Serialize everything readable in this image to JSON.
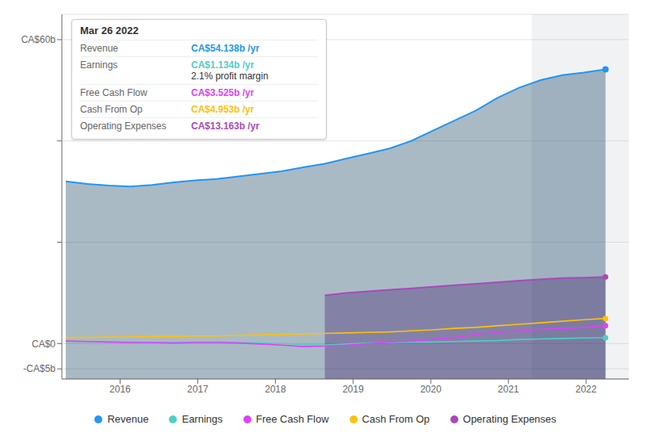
{
  "chart_data": {
    "type": "line",
    "xlim": [
      2015.25,
      2022.55
    ],
    "xticks": [
      2016,
      2017,
      2018,
      2019,
      2020,
      2021,
      2022
    ],
    "ylim": [
      -7,
      65
    ],
    "yticks": [
      {
        "value": 60,
        "label": "CA$60b"
      },
      {
        "value": 40,
        "label": null
      },
      {
        "value": 20,
        "label": null
      },
      {
        "value": 0,
        "label": "CA$0"
      },
      {
        "value": -5,
        "label": "-CA$5b"
      }
    ],
    "grid": true,
    "legend": "bottom",
    "x": [
      2015.3,
      2015.578,
      2015.856,
      2016.134,
      2016.412,
      2016.69,
      2016.968,
      2017.246,
      2017.524,
      2017.802,
      2018.08,
      2018.358,
      2018.636,
      2018.914,
      2019.192,
      2019.47,
      2019.748,
      2020.026,
      2020.304,
      2020.582,
      2020.86,
      2021.138,
      2021.416,
      2021.694,
      2021.972,
      2022.25
    ],
    "highlight_x": [
      2021.3,
      2023.25
    ],
    "series": [
      {
        "name": "Revenue",
        "type": "area",
        "color": "#2196f3",
        "fill_color": "#0a3a5a",
        "values": [
          32.0,
          31.5,
          31.2,
          31.0,
          31.3,
          31.8,
          32.2,
          32.5,
          33.0,
          33.5,
          34.0,
          34.8,
          35.5,
          36.5,
          37.5,
          38.5,
          40.0,
          42.0,
          44.0,
          46.0,
          48.5,
          50.5,
          52.0,
          53.0,
          53.5,
          54.138
        ]
      },
      {
        "name": "Earnings",
        "type": "line",
        "color": "#4dd0c4",
        "values": [
          0.5,
          0.4,
          0.3,
          0.3,
          0.2,
          0.2,
          0.3,
          0.3,
          0.2,
          0.1,
          0.0,
          -0.2,
          -0.3,
          -0.1,
          0.1,
          0.2,
          0.3,
          0.3,
          0.4,
          0.5,
          0.6,
          0.8,
          0.9,
          1.0,
          1.1,
          1.134
        ]
      },
      {
        "name": "Free Cash Flow",
        "type": "line",
        "color": "#e040fb",
        "values": [
          0.5,
          0.4,
          0.3,
          0.2,
          0.2,
          0.1,
          0.2,
          0.2,
          0.1,
          -0.1,
          -0.3,
          -0.6,
          -0.5,
          -0.3,
          0.0,
          0.3,
          0.5,
          0.8,
          1.2,
          1.8,
          2.2,
          2.5,
          2.8,
          3.0,
          3.2,
          3.525
        ]
      },
      {
        "name": "Cash From Op",
        "type": "line",
        "color": "#ffc107",
        "values": [
          1.2,
          1.2,
          1.3,
          1.3,
          1.4,
          1.4,
          1.5,
          1.5,
          1.6,
          1.7,
          1.8,
          1.9,
          2.0,
          2.1,
          2.2,
          2.3,
          2.5,
          2.7,
          3.0,
          3.2,
          3.5,
          3.8,
          4.1,
          4.4,
          4.7,
          4.953
        ]
      },
      {
        "name": "Operating Expenses",
        "type": "area",
        "color": "#ab47bc",
        "fill_color": "#3d1a6e",
        "values": [
          null,
          null,
          null,
          null,
          null,
          null,
          null,
          null,
          null,
          null,
          null,
          null,
          9.5,
          10.0,
          10.3,
          10.6,
          10.9,
          11.2,
          11.5,
          11.8,
          12.1,
          12.4,
          12.7,
          12.9,
          13.0,
          13.163
        ]
      }
    ],
    "tooltip": {
      "title": "Mar 26 2022",
      "rows": [
        {
          "label": "Revenue",
          "value": "CA$54.138b /yr"
        },
        {
          "label": "Earnings",
          "value": "CA$1.134b /yr",
          "note": "2.1% profit margin"
        },
        {
          "label": "Free Cash Flow",
          "value": "CA$3.525b /yr"
        },
        {
          "label": "Cash From Op",
          "value": "CA$4.953b /yr"
        },
        {
          "label": "Operating Expenses",
          "value": "CA$13.163b /yr"
        }
      ]
    }
  }
}
